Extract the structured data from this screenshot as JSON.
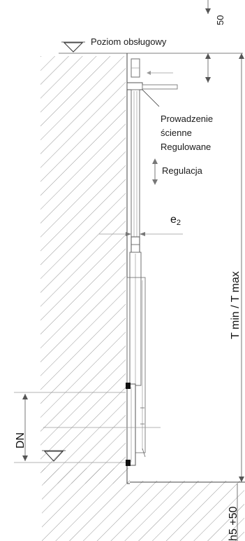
{
  "labels": {
    "service_level": "Poziom obsługowy",
    "guide_line1": "Prowadzenie",
    "guide_line2": "ścienne",
    "guide_line3": "Regulowane",
    "adjustment": "Regulacja",
    "e2_main": "e",
    "e2_sub": "2",
    "t_range": "T min / T max",
    "dn": "DN",
    "top_dim": "50",
    "bottom_dim": "h5 +50"
  },
  "colors": {
    "line": "#6f6f6f",
    "hatch": "#8c8c8c",
    "text": "#1a1a1a",
    "seal": "#111111"
  }
}
